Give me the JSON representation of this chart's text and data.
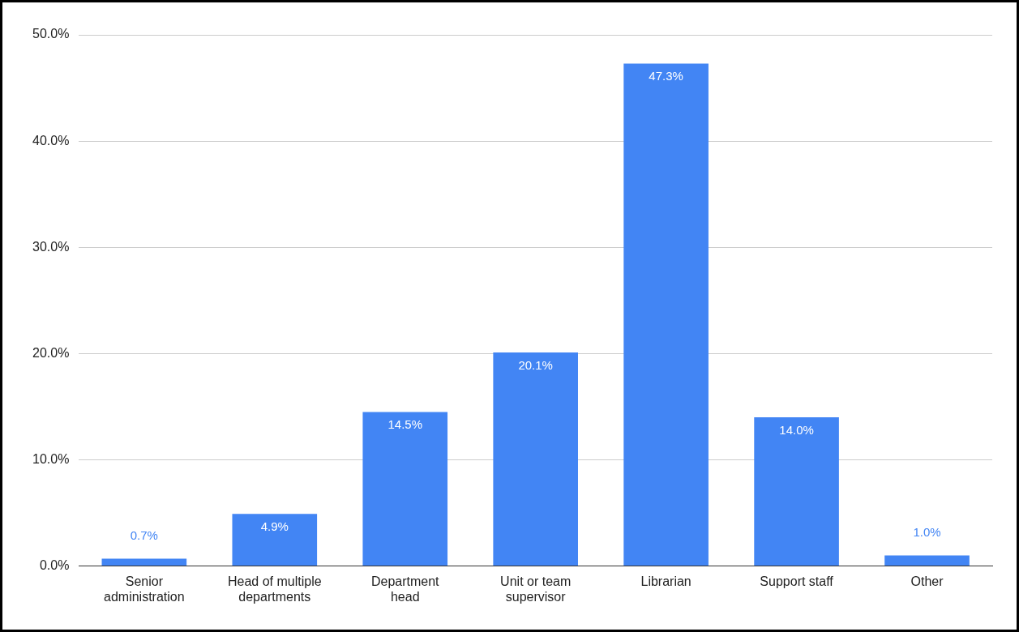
{
  "chart_data": {
    "type": "bar",
    "categories": [
      [
        "Senior",
        "administration"
      ],
      [
        "Head of multiple",
        "departments"
      ],
      [
        "Department",
        "head"
      ],
      [
        "Unit or team",
        "supervisor"
      ],
      "Librarian",
      "Support staff",
      "Other"
    ],
    "values": [
      0.7,
      4.9,
      14.5,
      20.1,
      47.3,
      14.0,
      1.0
    ],
    "value_labels": [
      "0.7%",
      "4.9%",
      "14.5%",
      "20.1%",
      "47.3%",
      "14.0%",
      "1.0%"
    ],
    "color": "#4285f4",
    "ylim": [
      0,
      50
    ],
    "yticks": [
      {
        "value": 0,
        "label": "0.0%"
      },
      {
        "value": 10,
        "label": "10.0%"
      },
      {
        "value": 20,
        "label": "20.0%"
      },
      {
        "value": 30,
        "label": "30.0%"
      },
      {
        "value": 40,
        "label": "40.0%"
      },
      {
        "value": 50,
        "label": "50.0%"
      }
    ],
    "grid": "y",
    "legend": false
  }
}
